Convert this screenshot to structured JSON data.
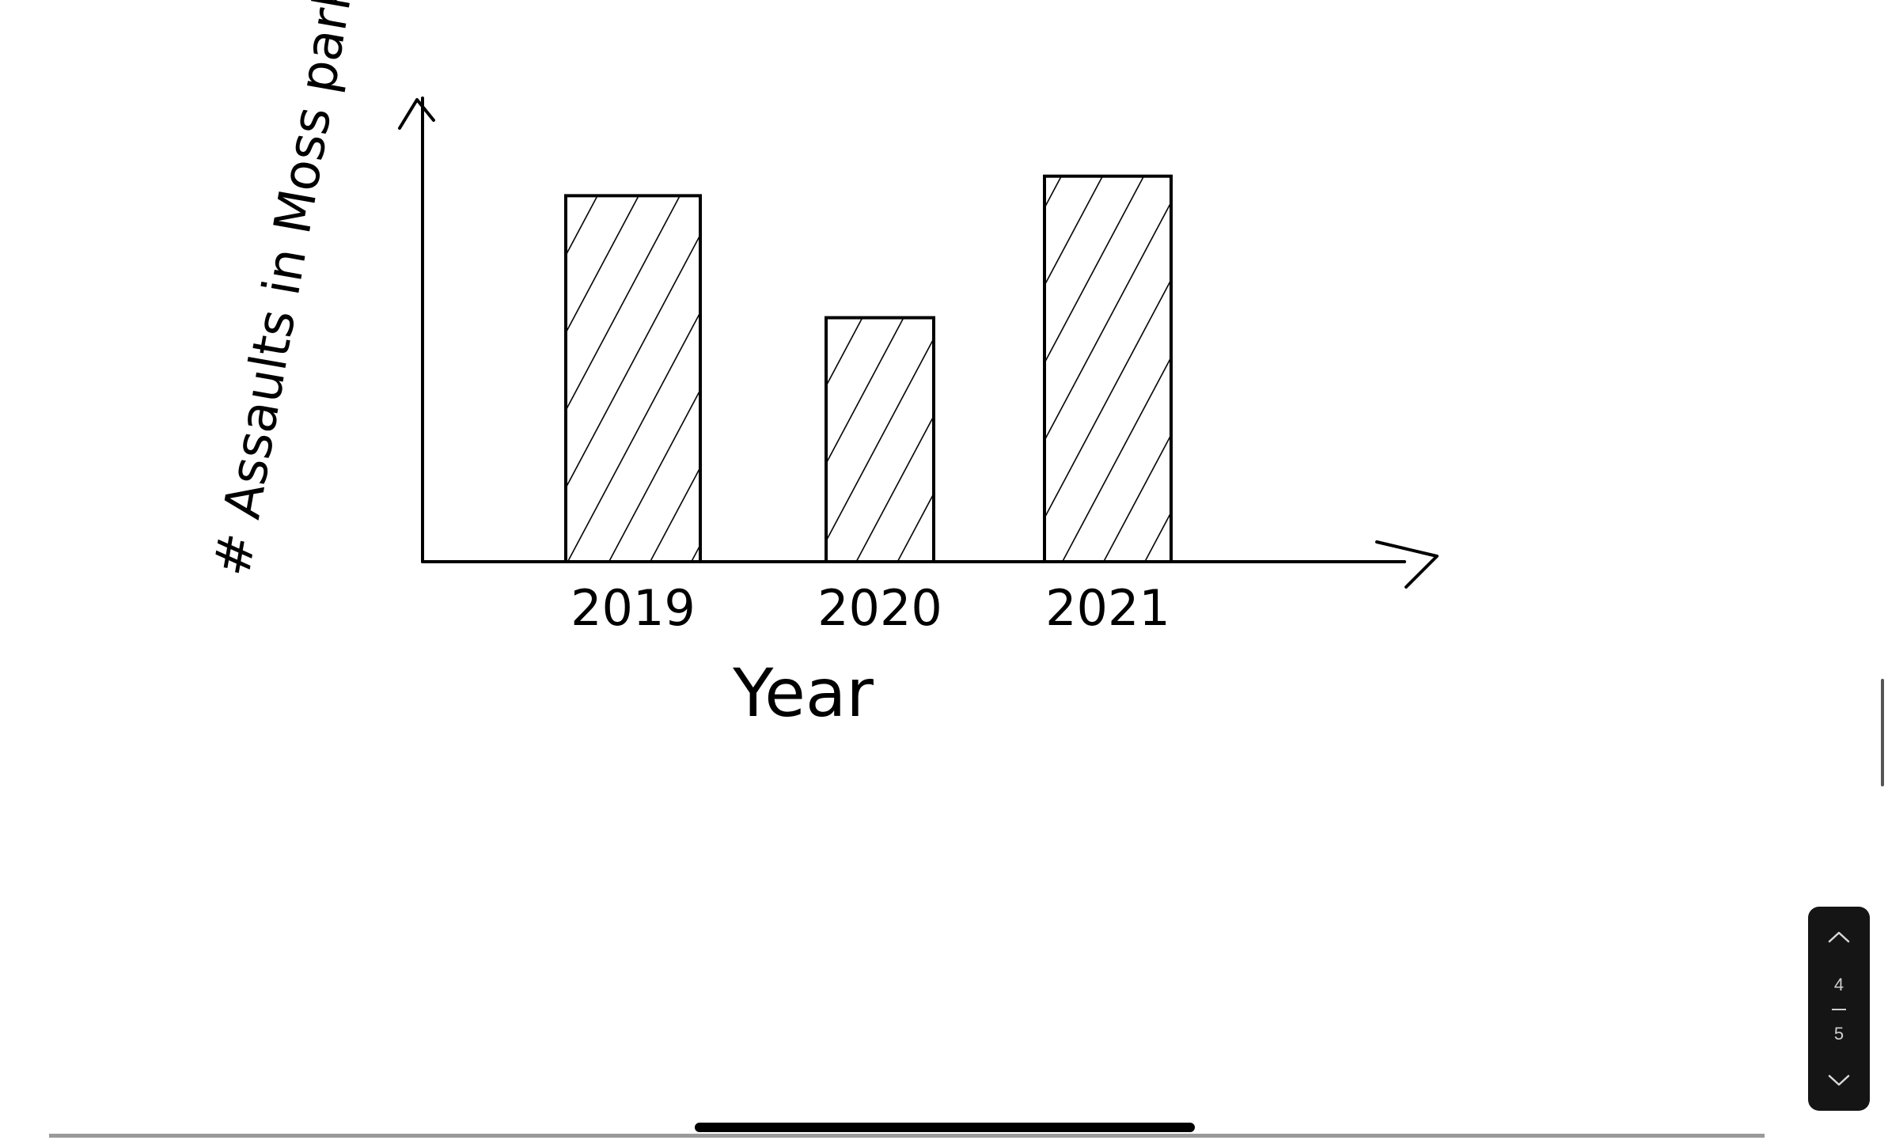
{
  "chart_data": {
    "type": "bar",
    "title": "",
    "xlabel": "Year",
    "ylabel": "# Assaults in Moss park",
    "categories": [
      "2019",
      "2020",
      "2021"
    ],
    "values": [
      7.5,
      5.0,
      7.9
    ],
    "ylim": [
      0,
      9.5
    ],
    "grid": false,
    "legend": "none",
    "bar_fill": "hatched",
    "colors": {
      "ink": "#000000",
      "background": "#ffffff"
    }
  },
  "pager": {
    "current": "4",
    "total": "5",
    "up_icon": "chevron-up-icon",
    "down_icon": "chevron-down-icon"
  }
}
